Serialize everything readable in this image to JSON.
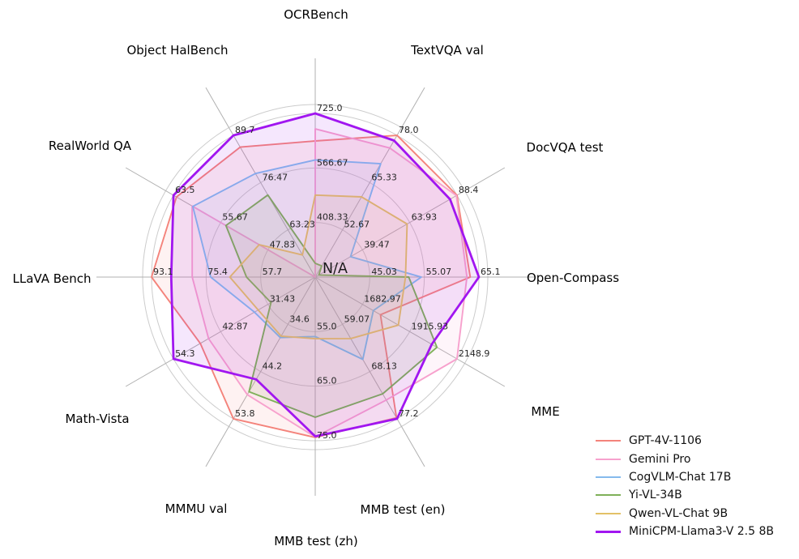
{
  "figure": {
    "background": "#ffffff",
    "grid_color": "#cccccc",
    "spoke_color": "#b0b0b0",
    "center_label": "N/A"
  },
  "chart_data": {
    "type": "radar",
    "title": "",
    "center_label": "N/A",
    "legend_position": "lower right",
    "grid": true,
    "axes": [
      {
        "label": "OCRBench",
        "max": 725.0,
        "center": 250.0,
        "ticks": [
          "725.0",
          "566.67",
          "408.33"
        ]
      },
      {
        "label": "TextVQA val",
        "max": 78.0,
        "center": 40.0,
        "ticks": [
          "78.0",
          "65.33",
          "52.67"
        ]
      },
      {
        "label": "DocVQA test",
        "max": 88.4,
        "center": 15.0,
        "ticks": [
          "88.4",
          "63.93",
          "39.47"
        ]
      },
      {
        "label": "Open-Compass",
        "max": 65.1,
        "center": 35.0,
        "ticks": [
          "65.1",
          "55.07",
          "45.03"
        ]
      },
      {
        "label": "MME",
        "max": 2148.9,
        "center": 1450.0,
        "ticks": [
          "2148.9",
          "1915.93",
          "1682.97"
        ]
      },
      {
        "label": "MMB test (en)",
        "max": 77.2,
        "center": 50.0,
        "ticks": [
          "77.2",
          "68.13",
          "59.07"
        ]
      },
      {
        "label": "MMB test (zh)",
        "max": 75.0,
        "center": 45.0,
        "ticks": [
          "75.0",
          "65.0",
          "55.0"
        ]
      },
      {
        "label": "MMMU val",
        "max": 53.8,
        "center": 25.0,
        "ticks": [
          "53.8",
          "44.2",
          "34.6"
        ]
      },
      {
        "label": "Math-Vista",
        "max": 54.3,
        "center": 20.0,
        "ticks": [
          "54.3",
          "42.87",
          "31.43"
        ]
      },
      {
        "label": "LLaVA Bench",
        "max": 93.1,
        "center": 40.0,
        "ticks": [
          "93.1",
          "75.4",
          "57.7"
        ]
      },
      {
        "label": "RealWorld QA",
        "max": 63.5,
        "center": 40.0,
        "ticks": [
          "63.5",
          "55.67",
          "47.83"
        ]
      },
      {
        "label": "Object HalBench",
        "max": 89.7,
        "center": 50.0,
        "ticks": [
          "89.7",
          "76.47",
          "63.23"
        ]
      }
    ],
    "series": [
      {
        "name": "GPT-4V-1106",
        "color": "#f4837b",
        "values": [
          645.0,
          78.0,
          88.4,
          63.5,
          1771.5,
          77.0,
          74.4,
          53.8,
          47.8,
          93.1,
          63.0,
          86.4
        ]
      },
      {
        "name": "Gemini Pro",
        "color": "#f7a1cd",
        "values": [
          680.0,
          74.6,
          88.1,
          62.9,
          2148.9,
          73.6,
          74.3,
          48.9,
          45.8,
          79.9,
          60.4,
          null
        ]
      },
      {
        "name": "CogVLM-Chat 17B",
        "color": "#85baec",
        "values": [
          590.0,
          70.4,
          33.3,
          54.5,
          1736.6,
          65.8,
          55.9,
          37.3,
          34.7,
          73.9,
          60.3,
          79.0
        ]
      },
      {
        "name": "Yi-VL-34B",
        "color": "#7fb059",
        "values": [
          290.0,
          43.0,
          16.9,
          52.2,
          2050.2,
          72.4,
          70.7,
          48.3,
          30.7,
          62.3,
          54.8,
          73.0
        ]
      },
      {
        "name": "Qwen-VL-Chat 9B",
        "color": "#e3c167",
        "values": [
          488.0,
          61.5,
          62.6,
          51.6,
          1860.0,
          61.8,
          56.3,
          37.0,
          33.8,
          67.7,
          49.3,
          56.2
        ]
      },
      {
        "name": "MiniCPM-Llama3-V 2.5 8B",
        "color": "#a116f0",
        "values": [
          725.0,
          76.6,
          84.8,
          65.1,
          2024.6,
          77.2,
          74.2,
          45.8,
          54.3,
          86.7,
          63.5,
          89.7
        ]
      }
    ]
  }
}
